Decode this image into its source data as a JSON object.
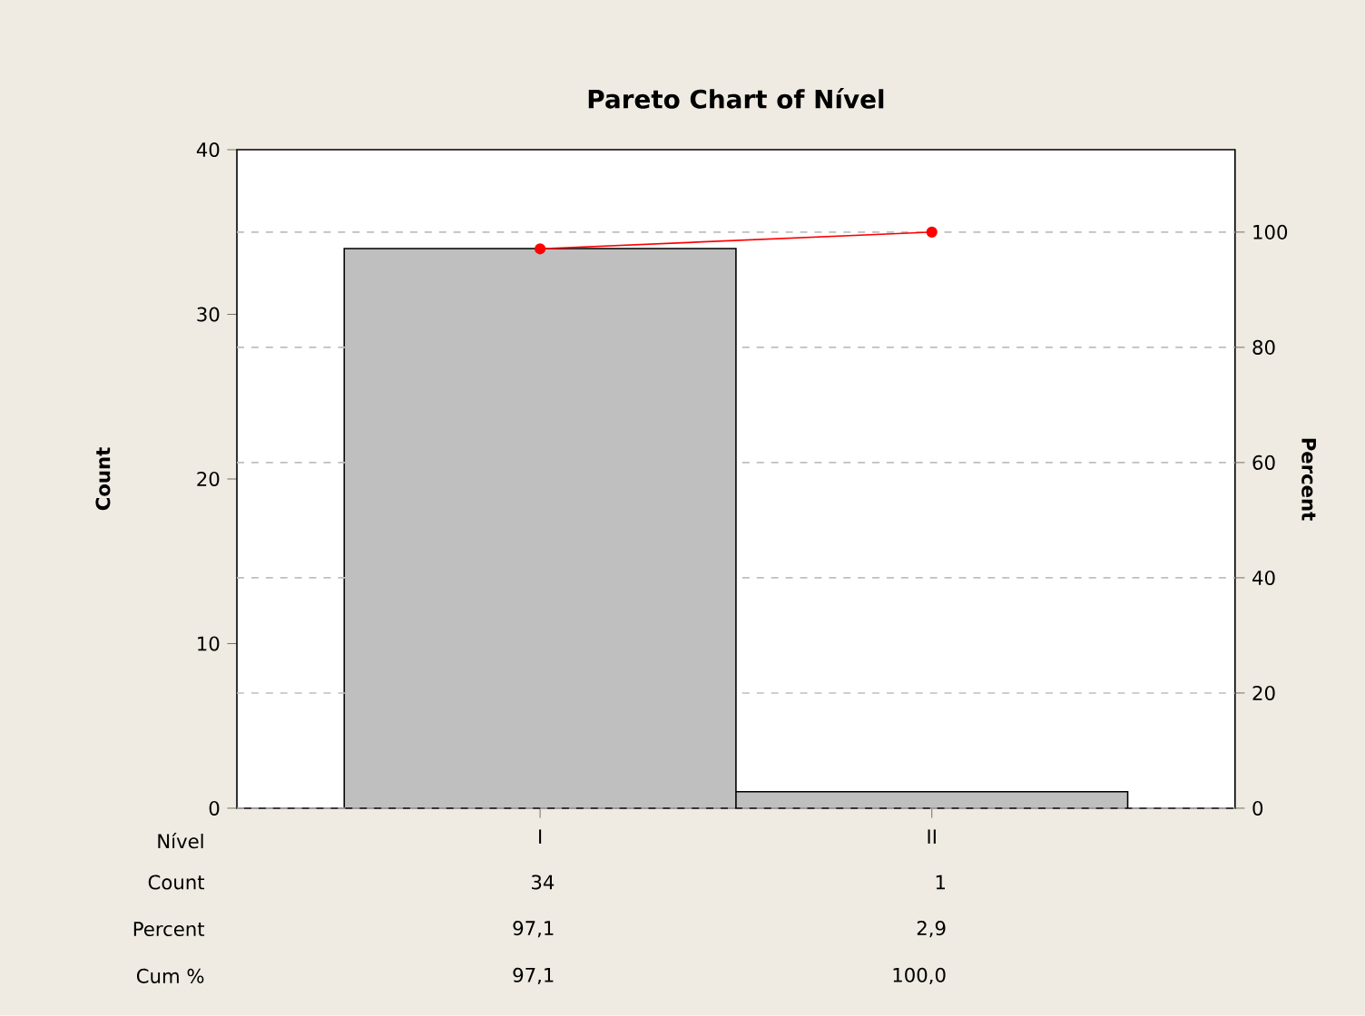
{
  "chart_data": {
    "type": "bar",
    "title": "Pareto Chart of Nível",
    "xlabel": "Nível",
    "ylabel": "Count",
    "y2label": "Percent",
    "categories": [
      "I",
      "II"
    ],
    "series": [
      {
        "color": "#bfbfbf",
        "values": [
          34,
          1
        ],
        "value_labels": [
          "34",
          "1"
        ]
      },
      {
        "type": "line",
        "axis": "y2",
        "color": "#ff0000",
        "values": [
          97.1,
          100
        ],
        "value_labels": [
          "97,1",
          "100,0"
        ]
      }
    ],
    "annotations": [
      "Count",
      "Percent",
      "Cum %",
      "97,1",
      "2,9"
    ],
    "ylim": [
      0,
      40
    ],
    "yticks": [
      0,
      10,
      20,
      30,
      40
    ],
    "y2lim": [
      0,
      114.3
    ],
    "y2ticks": [
      0,
      20,
      40,
      60,
      80,
      100
    ],
    "grid": "y",
    "marker": "circle"
  }
}
